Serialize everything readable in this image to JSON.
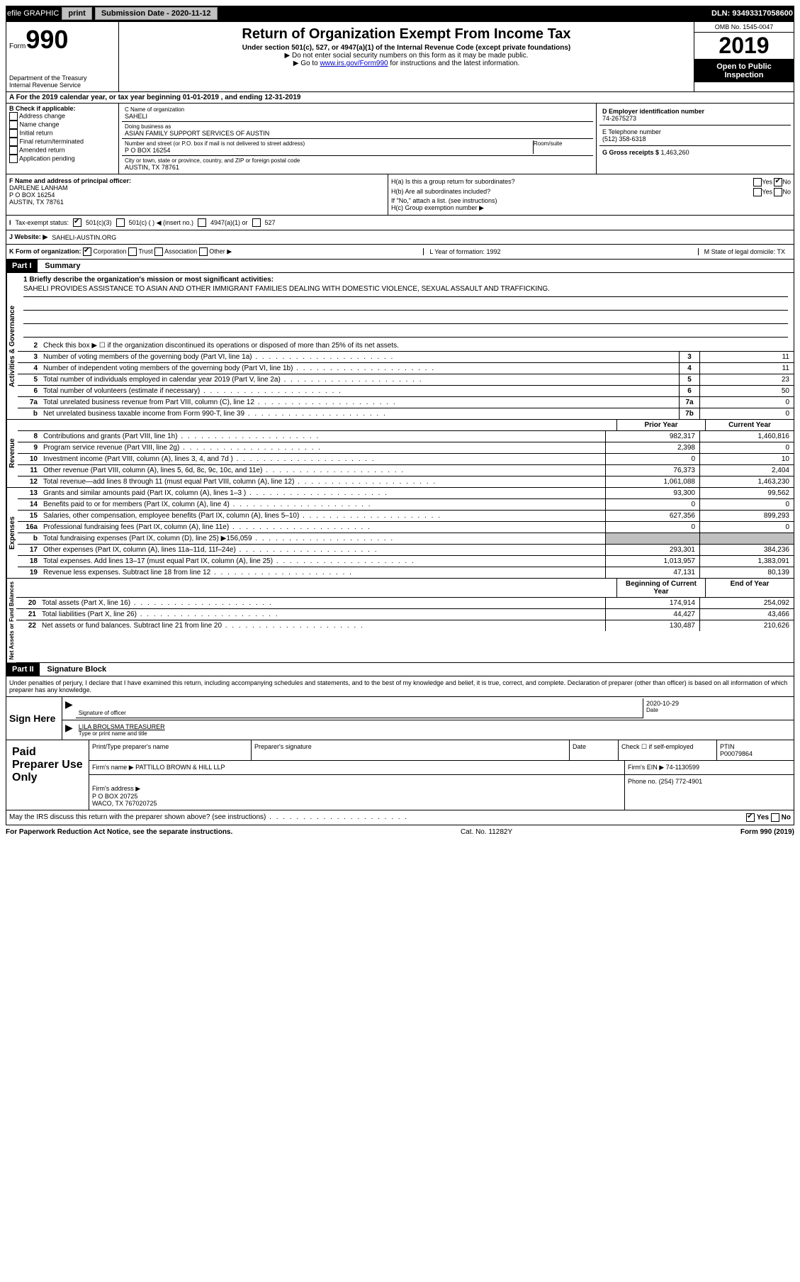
{
  "topbar": {
    "efile": "efile GRAPHIC",
    "print": "print",
    "subdate_label": "Submission Date - 2020-11-12",
    "dln": "DLN: 93493317058600"
  },
  "header": {
    "form_word": "Form",
    "form_num": "990",
    "dept": "Department of the Treasury\nInternal Revenue Service",
    "title": "Return of Organization Exempt From Income Tax",
    "subtitle": "Under section 501(c), 527, or 4947(a)(1) of the Internal Revenue Code (except private foundations)",
    "inst1": "▶ Do not enter social security numbers on this form as it may be made public.",
    "inst2_pre": "▶ Go to ",
    "inst2_link": "www.irs.gov/Form990",
    "inst2_post": " for instructions and the latest information.",
    "omb": "OMB No. 1545-0047",
    "year": "2019",
    "open": "Open to Public Inspection"
  },
  "sectionA": "A For the 2019 calendar year, or tax year beginning 01-01-2019  , and ending 12-31-2019",
  "checkB": {
    "label": "B Check if applicable:",
    "opts": [
      "Address change",
      "Name change",
      "Initial return",
      "Final return/terminated",
      "Amended return",
      "Application pending"
    ]
  },
  "orgC": {
    "name_lbl": "C Name of organization",
    "name": "SAHELI",
    "dba_lbl": "Doing business as",
    "dba": "ASIAN FAMILY SUPPORT SERVICES OF AUSTIN",
    "addr_lbl": "Number and street (or P.O. box if mail is not delivered to street address)",
    "room_lbl": "Room/suite",
    "addr": "P O BOX 16254",
    "city_lbl": "City or town, state or province, country, and ZIP or foreign postal code",
    "city": "AUSTIN, TX  78761"
  },
  "right": {
    "ein_lbl": "D Employer identification number",
    "ein": "74-2675273",
    "phone_lbl": "E Telephone number",
    "phone": "(512) 358-6318",
    "gross_lbl": "G Gross receipts $ ",
    "gross": "1,463,260"
  },
  "officerF": {
    "lbl": "F Name and address of principal officer:",
    "name": "DARLENE LANHAM",
    "addr1": "P O BOX 16254",
    "addr2": "AUSTIN, TX  78761"
  },
  "groupH": {
    "a": "H(a)  Is this a group return for subordinates?",
    "b": "H(b)  Are all subordinates included?",
    "b_note": "If \"No,\" attach a list. (see instructions)",
    "c": "H(c)  Group exemption number ▶",
    "yes": "Yes",
    "no": "No"
  },
  "taxI": {
    "lbl": "Tax-exempt status:",
    "o1": "501(c)(3)",
    "o2": "501(c) (  ) ◀ (insert no.)",
    "o3": "4947(a)(1) or",
    "o4": "527"
  },
  "websiteJ": {
    "lbl": "J Website: ▶",
    "val": "SAHELI-AUSTIN.ORG"
  },
  "korg": {
    "k": "K Form of organization:",
    "corp": "Corporation",
    "trust": "Trust",
    "assoc": "Association",
    "other": "Other ▶",
    "l": "L Year of formation: 1992",
    "m": "M State of legal domicile: TX"
  },
  "part1": {
    "hdr": "Part I",
    "title": "Summary",
    "vtab_ag": "Activities & Governance",
    "vtab_rev": "Revenue",
    "vtab_exp": "Expenses",
    "vtab_na": "Net Assets or Fund Balances",
    "l1_lbl": "1  Briefly describe the organization's mission or most significant activities:",
    "l1_text": "SAHELI PROVIDES ASSISTANCE TO ASIAN AND OTHER IMMIGRANT FAMILIES DEALING WITH DOMESTIC VIOLENCE, SEXUAL ASSAULT AND TRAFFICKING.",
    "l2": "Check this box ▶ ☐ if the organization discontinued its operations or disposed of more than 25% of its net assets.",
    "lines_ag": [
      {
        "n": "3",
        "d": "Number of voting members of the governing body (Part VI, line 1a)",
        "b": "3",
        "v": "11"
      },
      {
        "n": "4",
        "d": "Number of independent voting members of the governing body (Part VI, line 1b)",
        "b": "4",
        "v": "11"
      },
      {
        "n": "5",
        "d": "Total number of individuals employed in calendar year 2019 (Part V, line 2a)",
        "b": "5",
        "v": "23"
      },
      {
        "n": "6",
        "d": "Total number of volunteers (estimate if necessary)",
        "b": "6",
        "v": "50"
      },
      {
        "n": "7a",
        "d": "Total unrelated business revenue from Part VIII, column (C), line 12",
        "b": "7a",
        "v": "0"
      },
      {
        "n": "b",
        "d": "Net unrelated business taxable income from Form 990-T, line 39",
        "b": "7b",
        "v": "0"
      }
    ],
    "col_hdr_prior": "Prior Year",
    "col_hdr_curr": "Current Year",
    "lines_rev": [
      {
        "n": "8",
        "d": "Contributions and grants (Part VIII, line 1h)",
        "p": "982,317",
        "c": "1,460,816"
      },
      {
        "n": "9",
        "d": "Program service revenue (Part VIII, line 2g)",
        "p": "2,398",
        "c": "0"
      },
      {
        "n": "10",
        "d": "Investment income (Part VIII, column (A), lines 3, 4, and 7d )",
        "p": "0",
        "c": "10"
      },
      {
        "n": "11",
        "d": "Other revenue (Part VIII, column (A), lines 5, 6d, 8c, 9c, 10c, and 11e)",
        "p": "76,373",
        "c": "2,404"
      },
      {
        "n": "12",
        "d": "Total revenue—add lines 8 through 11 (must equal Part VIII, column (A), line 12)",
        "p": "1,061,088",
        "c": "1,463,230"
      }
    ],
    "lines_exp": [
      {
        "n": "13",
        "d": "Grants and similar amounts paid (Part IX, column (A), lines 1–3 )",
        "p": "93,300",
        "c": "99,562"
      },
      {
        "n": "14",
        "d": "Benefits paid to or for members (Part IX, column (A), line 4)",
        "p": "0",
        "c": "0"
      },
      {
        "n": "15",
        "d": "Salaries, other compensation, employee benefits (Part IX, column (A), lines 5–10)",
        "p": "627,356",
        "c": "899,293"
      },
      {
        "n": "16a",
        "d": "Professional fundraising fees (Part IX, column (A), line 11e)",
        "p": "0",
        "c": "0"
      },
      {
        "n": "b",
        "d": "Total fundraising expenses (Part IX, column (D), line 25) ▶156,059",
        "p": "",
        "c": "",
        "shade": true
      },
      {
        "n": "17",
        "d": "Other expenses (Part IX, column (A), lines 11a–11d, 11f–24e)",
        "p": "293,301",
        "c": "384,236"
      },
      {
        "n": "18",
        "d": "Total expenses. Add lines 13–17 (must equal Part IX, column (A), line 25)",
        "p": "1,013,957",
        "c": "1,383,091"
      },
      {
        "n": "19",
        "d": "Revenue less expenses. Subtract line 18 from line 12",
        "p": "47,131",
        "c": "80,139"
      }
    ],
    "col_hdr_begin": "Beginning of Current Year",
    "col_hdr_end": "End of Year",
    "lines_na": [
      {
        "n": "20",
        "d": "Total assets (Part X, line 16)",
        "p": "174,914",
        "c": "254,092"
      },
      {
        "n": "21",
        "d": "Total liabilities (Part X, line 26)",
        "p": "44,427",
        "c": "43,466"
      },
      {
        "n": "22",
        "d": "Net assets or fund balances. Subtract line 21 from line 20",
        "p": "130,487",
        "c": "210,626"
      }
    ]
  },
  "part2": {
    "hdr": "Part II",
    "title": "Signature Block",
    "intro": "Under penalties of perjury, I declare that I have examined this return, including accompanying schedules and statements, and to the best of my knowledge and belief, it is true, correct, and complete. Declaration of preparer (other than officer) is based on all information of which preparer has any knowledge.",
    "sign_here": "Sign Here",
    "sig_officer": "Signature of officer",
    "date_lbl": "Date",
    "date": "2020-10-29",
    "name_title": "LILA BROLSMA  TREASURER",
    "name_title_lbl": "Type or print name and title",
    "paid_lbl": "Paid Preparer Use Only",
    "prep_name_lbl": "Print/Type preparer's name",
    "prep_sig_lbl": "Preparer's signature",
    "prep_date_lbl": "Date",
    "self_emp": "Check ☐ if self-employed",
    "ptin_lbl": "PTIN",
    "ptin": "P00079864",
    "firm_name_lbl": "Firm's name    ▶",
    "firm_name": "PATTILLO BROWN & HILL LLP",
    "firm_ein_lbl": "Firm's EIN ▶",
    "firm_ein": "74-1130599",
    "firm_addr_lbl": "Firm's address ▶",
    "firm_addr": "P O BOX 20725\nWACO, TX  767020725",
    "firm_phone_lbl": "Phone no.",
    "firm_phone": "(254) 772-4901",
    "discuss": "May the IRS discuss this return with the preparer shown above? (see instructions)",
    "yes": "Yes",
    "no": "No"
  },
  "footer": {
    "left": "For Paperwork Reduction Act Notice, see the separate instructions.",
    "mid": "Cat. No. 11282Y",
    "right": "Form 990 (2019)"
  }
}
